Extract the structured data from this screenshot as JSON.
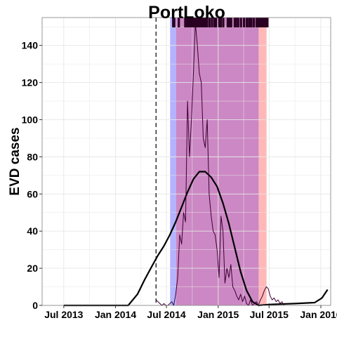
{
  "chart_data": {
    "type": "line",
    "title": "PortLoko",
    "xlabel": "",
    "ylabel": "EVD cases",
    "x_ticks": [
      "Jul 2013",
      "Jan 2014",
      "Jul 2014",
      "Jan 2015",
      "Jul 2015",
      "Jan 2016"
    ],
    "y_ticks": [
      "0",
      "20",
      "40",
      "60",
      "80",
      "100",
      "120",
      "140"
    ],
    "xlim": [
      "2013-04-15",
      "2016-02-05"
    ],
    "ylim": [
      0,
      155
    ],
    "grid": true,
    "vline_date": "2014-05-25",
    "shaded_regions": [
      {
        "start": "2014-07-14",
        "end": "2014-08-04",
        "color": "#b3b3ff"
      },
      {
        "start": "2014-08-04",
        "end": "2015-05-25",
        "color": "#cc88c4"
      },
      {
        "start": "2015-05-25",
        "end": "2015-06-22",
        "color": "#ffb8b8"
      }
    ],
    "series": [
      {
        "style": "fitted",
        "color": "#000000",
        "points": [
          [
            "2013-07-01",
            0
          ],
          [
            "2014-01-01",
            0
          ],
          [
            "2014-02-15",
            0
          ],
          [
            "2014-03-20",
            6
          ],
          [
            "2014-04-15",
            14
          ],
          [
            "2014-05-10",
            21
          ],
          [
            "2014-06-01",
            27
          ],
          [
            "2014-06-22",
            32
          ],
          [
            "2014-07-13",
            38
          ],
          [
            "2014-08-03",
            45
          ],
          [
            "2014-08-24",
            53
          ],
          [
            "2014-09-14",
            61
          ],
          [
            "2014-10-05",
            68
          ],
          [
            "2014-10-26",
            72
          ],
          [
            "2014-11-16",
            72
          ],
          [
            "2014-12-07",
            69
          ],
          [
            "2014-12-28",
            64
          ],
          [
            "2015-01-18",
            55
          ],
          [
            "2015-02-08",
            44
          ],
          [
            "2015-03-01",
            31
          ],
          [
            "2015-03-22",
            18
          ],
          [
            "2015-04-12",
            8
          ],
          [
            "2015-05-03",
            2
          ],
          [
            "2015-05-24",
            0
          ],
          [
            "2015-07-01",
            0.5
          ],
          [
            "2015-10-01",
            1
          ],
          [
            "2015-12-10",
            1.5
          ],
          [
            "2016-01-05",
            4
          ],
          [
            "2016-01-25",
            8.5
          ]
        ]
      },
      {
        "style": "observed",
        "color": "#3d0033",
        "points": [
          [
            "2014-05-25",
            3
          ],
          [
            "2014-06-01",
            2
          ],
          [
            "2014-06-08",
            1
          ],
          [
            "2014-06-15",
            0
          ],
          [
            "2014-06-22",
            1
          ],
          [
            "2014-06-29",
            0
          ],
          [
            "2014-07-06",
            0
          ],
          [
            "2014-07-13",
            1
          ],
          [
            "2014-07-20",
            2
          ],
          [
            "2014-07-27",
            0
          ],
          [
            "2014-08-03",
            6
          ],
          [
            "2014-08-10",
            15
          ],
          [
            "2014-08-17",
            38
          ],
          [
            "2014-08-24",
            33
          ],
          [
            "2014-08-31",
            50
          ],
          [
            "2014-09-07",
            45
          ],
          [
            "2014-09-14",
            110
          ],
          [
            "2014-09-21",
            80
          ],
          [
            "2014-09-28",
            100
          ],
          [
            "2014-10-05",
            125
          ],
          [
            "2014-10-12",
            152
          ],
          [
            "2014-10-19",
            140
          ],
          [
            "2014-10-26",
            125
          ],
          [
            "2014-11-02",
            120
          ],
          [
            "2014-11-09",
            90
          ],
          [
            "2014-11-16",
            85
          ],
          [
            "2014-11-23",
            100
          ],
          [
            "2014-11-30",
            60
          ],
          [
            "2014-12-07",
            48
          ],
          [
            "2014-12-14",
            40
          ],
          [
            "2014-12-21",
            38
          ],
          [
            "2014-12-28",
            30
          ],
          [
            "2015-01-04",
            15
          ],
          [
            "2015-01-11",
            48
          ],
          [
            "2015-01-18",
            40
          ],
          [
            "2015-01-25",
            12
          ],
          [
            "2015-02-01",
            20
          ],
          [
            "2015-02-08",
            15
          ],
          [
            "2015-02-15",
            22
          ],
          [
            "2015-02-22",
            10
          ],
          [
            "2015-03-01",
            8
          ],
          [
            "2015-03-08",
            5
          ],
          [
            "2015-03-15",
            3
          ],
          [
            "2015-03-22",
            6
          ],
          [
            "2015-03-29",
            2
          ],
          [
            "2015-04-05",
            5
          ],
          [
            "2015-04-12",
            1
          ],
          [
            "2015-04-19",
            0
          ],
          [
            "2015-04-26",
            3
          ],
          [
            "2015-05-03",
            0
          ],
          [
            "2015-05-10",
            1
          ],
          [
            "2015-05-17",
            2
          ],
          [
            "2015-05-24",
            0
          ],
          [
            "2015-05-31",
            3
          ],
          [
            "2015-06-07",
            5
          ],
          [
            "2015-06-14",
            8
          ],
          [
            "2015-06-21",
            10
          ],
          [
            "2015-06-28",
            9
          ],
          [
            "2015-07-05",
            5
          ],
          [
            "2015-07-12",
            3
          ],
          [
            "2015-07-19",
            4
          ],
          [
            "2015-07-26",
            2
          ],
          [
            "2015-08-02",
            3
          ],
          [
            "2015-08-09",
            1
          ],
          [
            "2015-08-16",
            2
          ],
          [
            "2015-08-23",
            0
          ]
        ]
      }
    ],
    "rug_dates": [
      "2014-07-25",
      "2014-07-29",
      "2014-08-14",
      "2014-09-06",
      "2014-09-09",
      "2014-09-12",
      "2014-09-16",
      "2014-09-19",
      "2014-09-22",
      "2014-09-26",
      "2014-09-29",
      "2014-10-05",
      "2014-10-11",
      "2014-10-17",
      "2014-10-23",
      "2014-10-29",
      "2014-11-04",
      "2014-11-10",
      "2014-11-16",
      "2014-11-22",
      "2014-12-01",
      "2014-12-10",
      "2014-12-19",
      "2014-12-24",
      "2015-01-05",
      "2015-01-10",
      "2015-01-19",
      "2015-02-04",
      "2015-02-10",
      "2015-02-16",
      "2015-03-01",
      "2015-03-05",
      "2015-03-13",
      "2015-03-23",
      "2015-04-03",
      "2015-04-13",
      "2015-04-21",
      "2015-04-24",
      "2015-04-29",
      "2015-05-08",
      "2015-05-18",
      "2015-05-22",
      "2015-05-29",
      "2015-06-02",
      "2015-06-05",
      "2015-06-08",
      "2015-06-11",
      "2015-06-14",
      "2015-06-17",
      "2015-06-19",
      "2015-06-22",
      "2015-06-25"
    ]
  }
}
